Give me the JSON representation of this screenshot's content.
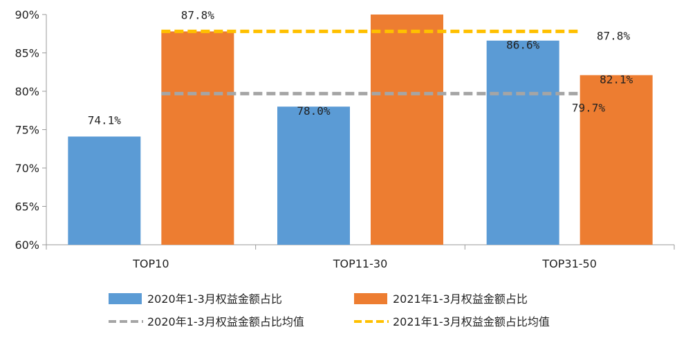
{
  "chart_data": {
    "type": "bar",
    "categories": [
      "TOP10",
      "TOP11-30",
      "TOP31-50"
    ],
    "series": [
      {
        "name": "2020年1-3月权益金额占比",
        "values": [
          74.1,
          78.0,
          86.6
        ],
        "color": "#5B9BD5"
      },
      {
        "name": "2021年1-3月权益金额占比",
        "values": [
          87.8,
          90.0,
          82.1
        ],
        "color": "#ED7D31"
      }
    ],
    "reference_lines": [
      {
        "name": "2020年1-3月权益金额占比均值",
        "value": 79.7,
        "color": "#A5A5A5",
        "style": "dashed"
      },
      {
        "name": "2021年1-3月权益金额占比均值",
        "value": 87.8,
        "color": "#FFC000",
        "style": "dashed"
      }
    ],
    "data_labels": {
      "bars": [
        [
          "74.1%",
          "87.8%"
        ],
        [
          "78.0%",
          ""
        ],
        [
          "86.6%",
          "82.1%"
        ]
      ],
      "avg_2020": "79.7%",
      "avg_2021": "87.8%"
    },
    "ylim": [
      60,
      90
    ],
    "yticks": [
      "60%",
      "65%",
      "70%",
      "75%",
      "80%",
      "85%",
      "90%"
    ],
    "ytick_values": [
      60,
      65,
      70,
      75,
      80,
      85,
      90
    ],
    "legend_position": "bottom",
    "grid": false
  }
}
